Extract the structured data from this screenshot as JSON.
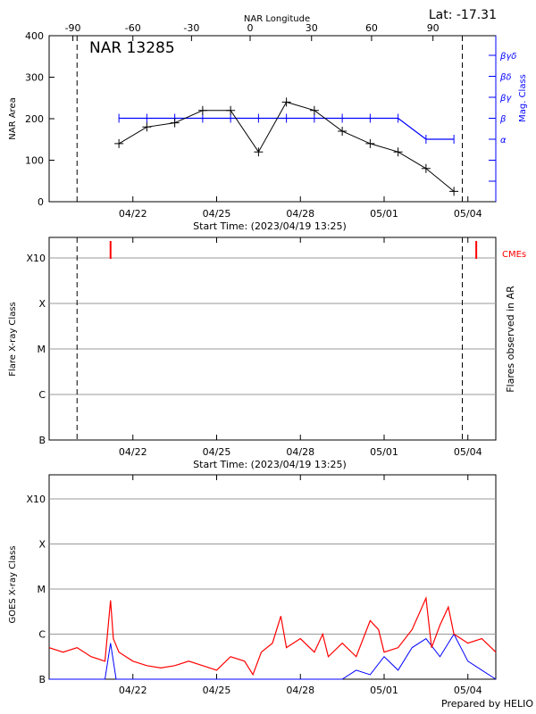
{
  "header": {
    "top_axis_label": "NAR Longitude",
    "latitude_label": "Lat: -17.31",
    "region_title": "NAR 13285",
    "footer": "Prepared by HELIO"
  },
  "colors": {
    "background": "#ffffff",
    "axis": "#000000",
    "area_series": "#000000",
    "mag_class_series": "#0000ff",
    "flare_markers": "#ff0000",
    "grid": "#999999",
    "goes_long": "#ff0000",
    "goes_short": "#0000ff"
  },
  "chart_data": [
    {
      "type": "line",
      "name": "nar-area-panel",
      "xlabel": "Start Time: (2023/04/19 13:25)",
      "x_tick_labels": [
        "04/22",
        "04/25",
        "04/28",
        "05/01",
        "05/04"
      ],
      "x_tick_days": [
        3,
        6,
        9,
        12,
        15
      ],
      "x_range_days": [
        0,
        16
      ],
      "ylabel": "NAR Area",
      "ylim": [
        0,
        400
      ],
      "y_ticks": [
        0,
        100,
        200,
        300,
        400
      ],
      "top_axis": {
        "label": "NAR Longitude",
        "ticks": [
          "-90",
          "-60",
          "-30",
          "0",
          "30",
          "60",
          "90"
        ],
        "tick_days": [
          0.85,
          3.0,
          5.1,
          7.2,
          9.4,
          11.55,
          13.75
        ]
      },
      "right_axis": {
        "label": "Mag. Class",
        "classes": [
          "α",
          "β",
          "βγ",
          "βδ",
          "βγδ"
        ]
      },
      "vertical_dashed_days": [
        1.0,
        14.8
      ],
      "series": [
        {
          "name": "NAR Area",
          "x_days": [
            2.5,
            3.5,
            4.5,
            5.5,
            6.5,
            7.5,
            8.5,
            9.5,
            10.5,
            11.5,
            12.5,
            13.5,
            14.5
          ],
          "values": [
            140,
            180,
            190,
            220,
            220,
            120,
            240,
            220,
            170,
            140,
            120,
            80,
            25
          ]
        },
        {
          "name": "Mag. Class",
          "x_days": [
            2.5,
            3.5,
            4.5,
            5.5,
            6.5,
            7.5,
            8.5,
            9.5,
            10.5,
            11.5,
            12.5,
            13.5,
            14.5
          ],
          "values": [
            "β",
            "β",
            "β",
            "β",
            "β",
            "β",
            "β",
            "β",
            "β",
            "β",
            "β",
            "α",
            "α"
          ]
        }
      ]
    },
    {
      "type": "scatter",
      "name": "flare-class-panel",
      "xlabel": "Start Time: (2023/04/19 13:25)",
      "ylabel": "Flare X-ray Class",
      "right_label": "Flares observed in AR",
      "y_classes": [
        "B",
        "C",
        "M",
        "X",
        "X10"
      ],
      "cme_label": "CMEs",
      "cme_days": [
        2.2,
        15.3
      ],
      "flares": [],
      "vertical_dashed_days": [
        1.0,
        14.8
      ]
    },
    {
      "type": "line",
      "name": "goes-panel",
      "ylabel": "GOES X-ray Class",
      "y_classes": [
        "B",
        "C",
        "M",
        "X",
        "X10"
      ],
      "x_tick_labels": [
        "04/22",
        "04/25",
        "04/28",
        "05/01",
        "05/04"
      ],
      "series": [
        {
          "name": "GOES long channel",
          "x_days": [
            0.0,
            0.5,
            1.0,
            1.5,
            2.0,
            2.2,
            2.3,
            2.5,
            3.0,
            3.5,
            4.0,
            4.5,
            5.0,
            5.5,
            6.0,
            6.5,
            7.0,
            7.3,
            7.6,
            8.0,
            8.3,
            8.5,
            9.0,
            9.5,
            9.8,
            10.0,
            10.5,
            11.0,
            11.5,
            11.8,
            12.0,
            12.5,
            13.0,
            13.5,
            13.7,
            14.0,
            14.3,
            14.5,
            15.0,
            15.5,
            16.0
          ],
          "log_levels": [
            -6.3,
            -6.4,
            -6.3,
            -6.5,
            -6.6,
            -5.25,
            -6.1,
            -6.4,
            -6.6,
            -6.7,
            -6.75,
            -6.7,
            -6.6,
            -6.7,
            -6.8,
            -6.5,
            -6.6,
            -6.9,
            -6.4,
            -6.2,
            -5.6,
            -6.3,
            -6.1,
            -6.4,
            -6.0,
            -6.5,
            -6.2,
            -6.5,
            -5.7,
            -5.9,
            -6.4,
            -6.3,
            -5.9,
            -5.2,
            -6.3,
            -5.8,
            -5.4,
            -6.0,
            -6.2,
            -6.1,
            -6.4
          ]
        },
        {
          "name": "GOES short channel",
          "x_days": [
            0.0,
            0.5,
            1.0,
            1.5,
            2.0,
            2.2,
            2.4,
            3.0,
            4.0,
            5.0,
            6.0,
            7.0,
            7.6,
            8.3,
            9.0,
            9.5,
            10.0,
            10.5,
            11.0,
            11.5,
            12.0,
            12.5,
            13.0,
            13.5,
            14.0,
            14.5,
            15.0,
            15.5,
            16.0
          ],
          "log_levels": [
            -7.7,
            -7.8,
            -7.7,
            -7.9,
            -7.8,
            -6.2,
            -7.8,
            -8.0,
            -8.0,
            -8.0,
            -8.0,
            -8.0,
            -7.4,
            -7.2,
            -7.8,
            -7.2,
            -7.0,
            -7.3,
            -6.8,
            -6.9,
            -6.5,
            -6.8,
            -6.3,
            -6.1,
            -6.5,
            -6.0,
            -6.6,
            -6.8,
            -7.4
          ]
        }
      ]
    }
  ]
}
